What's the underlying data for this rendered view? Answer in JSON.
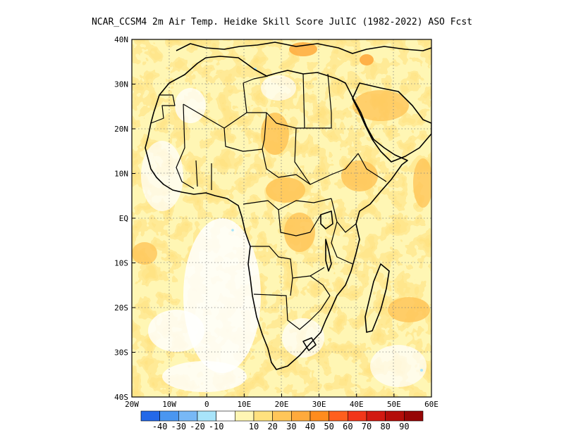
{
  "title": "NCAR_CCSM4  2m Air Temp. Heidke Skill Score JulIC (1982-2022) ASO Fcst",
  "map": {
    "lon_range": [
      -20,
      60
    ],
    "lat_range": [
      -40,
      40
    ],
    "lon_ticks": [
      {
        "value": -20,
        "label": "20W"
      },
      {
        "value": -10,
        "label": "10W"
      },
      {
        "value": 0,
        "label": "0"
      },
      {
        "value": 10,
        "label": "10E"
      },
      {
        "value": 20,
        "label": "20E"
      },
      {
        "value": 30,
        "label": "30E"
      },
      {
        "value": 40,
        "label": "40E"
      },
      {
        "value": 50,
        "label": "50E"
      },
      {
        "value": 60,
        "label": "60E"
      }
    ],
    "lat_ticks": [
      {
        "value": 40,
        "label": "40N"
      },
      {
        "value": 30,
        "label": "30N"
      },
      {
        "value": 20,
        "label": "20N"
      },
      {
        "value": 10,
        "label": "10N"
      },
      {
        "value": 0,
        "label": "EQ"
      },
      {
        "value": -10,
        "label": "10S"
      },
      {
        "value": -20,
        "label": "20S"
      },
      {
        "value": -30,
        "label": "30S"
      },
      {
        "value": -40,
        "label": "40S"
      }
    ],
    "grid": true
  },
  "colorbar": {
    "colors": [
      "#2468e8",
      "#4a96f0",
      "#78b8f6",
      "#a8e4fa",
      "#ffffff",
      "#fff6b4",
      "#ffe17e",
      "#ffc659",
      "#ffaa3c",
      "#ff8c1e",
      "#ff5f1e",
      "#f2361a",
      "#d21a12",
      "#b40e0a",
      "#960606"
    ],
    "labels": [
      "-40",
      "-30",
      "-20",
      "-10",
      "10",
      "20",
      "30",
      "40",
      "50",
      "60",
      "70",
      "80",
      "90"
    ]
  }
}
